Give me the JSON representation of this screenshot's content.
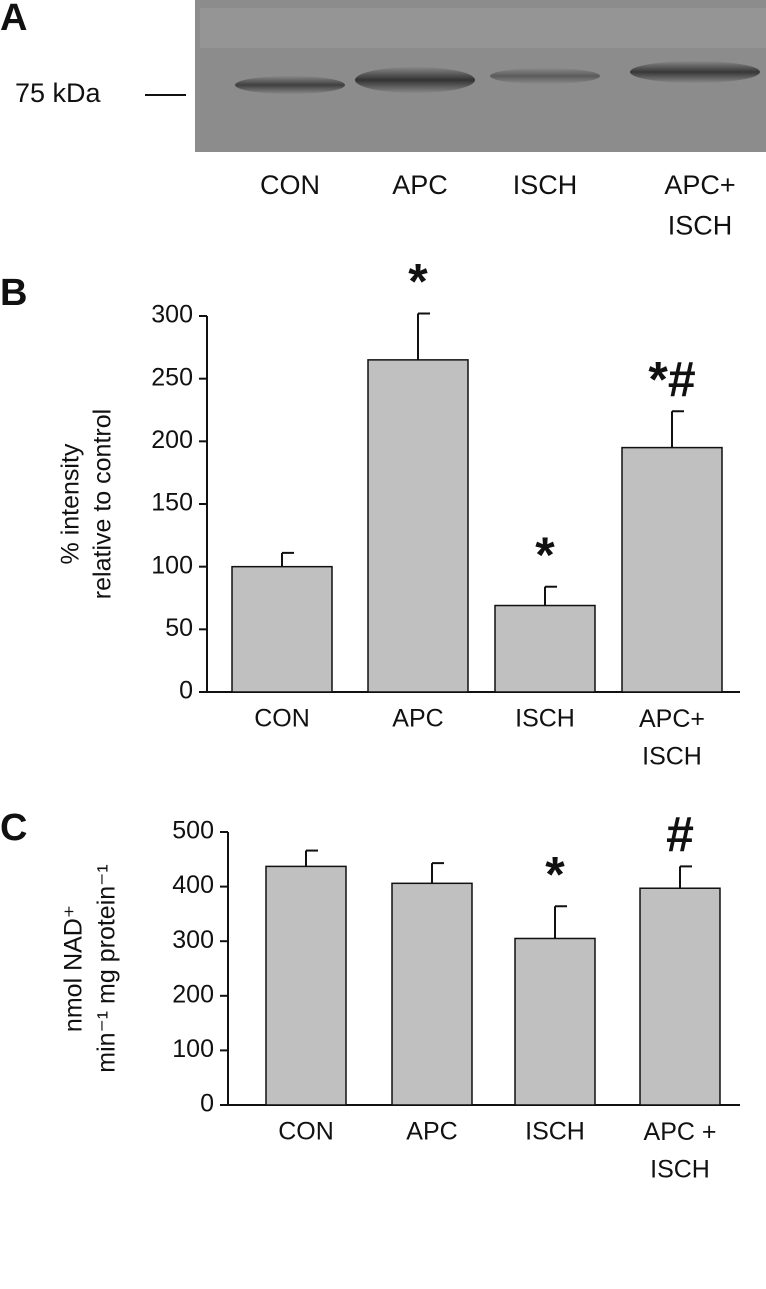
{
  "panel_a": {
    "label": "A",
    "marker": "75 kDa",
    "lanes": [
      "CON",
      "APC",
      "ISCH",
      "APC+\nISCH"
    ]
  },
  "chart_data": [
    {
      "type": "bar",
      "panel": "B",
      "ylabel": [
        "% intensity",
        "relative to control"
      ],
      "categories": [
        "CON",
        "APC",
        "ISCH",
        "APC+\nISCH"
      ],
      "values": [
        100,
        265,
        69,
        195
      ],
      "errors": [
        11,
        37,
        15,
        29
      ],
      "annotations": [
        null,
        "*",
        "*",
        "*#"
      ],
      "color": "#c0c0c0",
      "ylim": [
        0,
        300
      ],
      "yticks": [
        0,
        50,
        100,
        150,
        200,
        250,
        300
      ]
    },
    {
      "type": "bar",
      "panel": "C",
      "ylabel": [
        "nmol NAD⁺",
        "min⁻¹ mg protein⁻¹"
      ],
      "categories": [
        "CON",
        "APC",
        "ISCH",
        "APC +\nISCH"
      ],
      "values": [
        437,
        406,
        305,
        397
      ],
      "errors": [
        29,
        37,
        59,
        40
      ],
      "annotations": [
        null,
        null,
        "*",
        "#"
      ],
      "color": "#c0c0c0",
      "ylim": [
        0,
        500
      ],
      "yticks": [
        0,
        100,
        200,
        300,
        400,
        500
      ]
    }
  ]
}
